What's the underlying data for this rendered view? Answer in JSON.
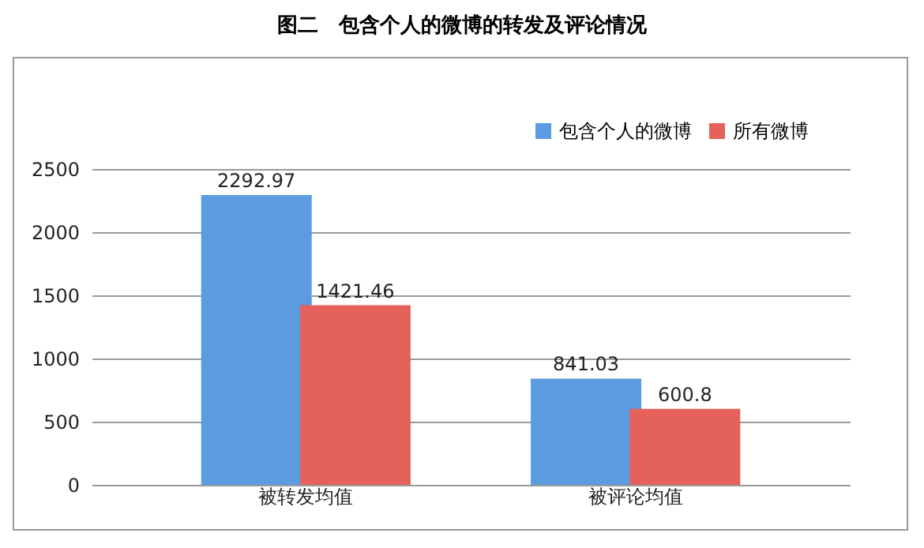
{
  "chart_data": {
    "type": "bar",
    "title": "图二　包含个人的微博的转发及评论情况",
    "categories": [
      "被转发均值",
      "被评论均值"
    ],
    "series": [
      {
        "name": "包含个人的微博",
        "color": "#5b9be0",
        "values": [
          2292.97,
          841.03
        ]
      },
      {
        "name": "所有微博",
        "color": "#e5615b",
        "values": [
          1421.46,
          600.8
        ]
      }
    ],
    "ylim": [
      0,
      2500
    ],
    "yticks": [
      0,
      500,
      1000,
      1500,
      2000,
      2500
    ],
    "grid": "y",
    "legend": "top right",
    "data_labels": true
  }
}
